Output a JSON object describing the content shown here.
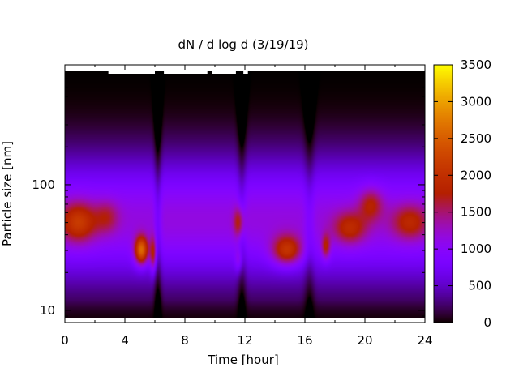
{
  "chart_data": {
    "type": "heatmap",
    "title": "dN / d log d (3/19/19)",
    "xlabel": "Time [hour]",
    "ylabel": "Particle size [nm]",
    "xlim": [
      0,
      24
    ],
    "ylim": [
      8,
      900
    ],
    "y_scale": "log",
    "x_ticks": [
      0,
      4,
      8,
      12,
      16,
      20,
      24
    ],
    "y_ticks": [
      10,
      100
    ],
    "colorbar": {
      "min": 0,
      "max": 3500,
      "ticks": [
        0,
        500,
        1000,
        1500,
        2000,
        2500,
        3000,
        3500
      ],
      "palette": "gnuplot"
    },
    "grid": false,
    "blobs": [
      {
        "x": 0.9,
        "d": 50,
        "sx": 1.2,
        "sy": 0.16,
        "amp": 1000
      },
      {
        "x": 2.8,
        "d": 55,
        "sx": 0.8,
        "sy": 0.13,
        "amp": 500
      },
      {
        "x": 5.1,
        "d": 30,
        "sx": 0.45,
        "sy": 0.11,
        "amp": 1700
      },
      {
        "x": 5.9,
        "d": 28,
        "sx": 0.22,
        "sy": 0.14,
        "amp": 900
      },
      {
        "x": 11.6,
        "d": 50,
        "sx": 0.35,
        "sy": 0.12,
        "amp": 750
      },
      {
        "x": 11.6,
        "d": 25,
        "sx": 0.25,
        "sy": 0.1,
        "amp": 450
      },
      {
        "x": 14.8,
        "d": 30,
        "sx": 1.0,
        "sy": 0.12,
        "amp": 1150
      },
      {
        "x": 17.4,
        "d": 32,
        "sx": 0.3,
        "sy": 0.1,
        "amp": 800
      },
      {
        "x": 19.0,
        "d": 45,
        "sx": 1.1,
        "sy": 0.13,
        "amp": 800
      },
      {
        "x": 20.4,
        "d": 70,
        "sx": 0.8,
        "sy": 0.13,
        "amp": 700
      },
      {
        "x": 23.0,
        "d": 50,
        "sx": 1.2,
        "sy": 0.14,
        "amp": 750
      }
    ],
    "dips": [
      {
        "x": 6.2,
        "sx": 0.25,
        "amp": 350
      },
      {
        "x": 11.8,
        "sx": 0.3,
        "amp": 300
      },
      {
        "x": 16.3,
        "sx": 0.35,
        "amp": 250
      }
    ],
    "missing_top_segments": [
      {
        "x0": 2.9,
        "x1": 6.0
      },
      {
        "x0": 6.6,
        "x1": 9.5
      },
      {
        "x0": 9.8,
        "x1": 11.4
      },
      {
        "x0": 11.9,
        "x1": 12.2
      }
    ]
  }
}
